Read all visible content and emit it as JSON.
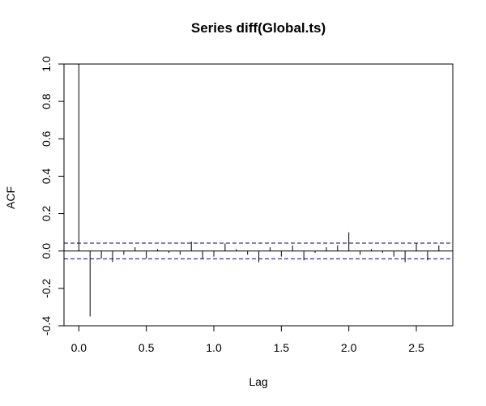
{
  "chart_data": {
    "type": "bar",
    "title": "Series  diff(Global.ts)",
    "xlabel": "Lag",
    "ylabel": "ACF",
    "xlim": [
      -0.11,
      2.77
    ],
    "ylim": [
      -0.4,
      1.0
    ],
    "x_ticks": [
      {
        "value": 0.0,
        "label": "0.0"
      },
      {
        "value": 0.5,
        "label": "0.5"
      },
      {
        "value": 1.0,
        "label": "1.0"
      },
      {
        "value": 1.5,
        "label": "1.5"
      },
      {
        "value": 2.0,
        "label": "2.0"
      },
      {
        "value": 2.5,
        "label": "2.5"
      }
    ],
    "y_ticks": [
      {
        "value": -0.4,
        "label": "-0.4"
      },
      {
        "value": -0.2,
        "label": "-0.2"
      },
      {
        "value": 0.0,
        "label": "0.0"
      },
      {
        "value": 0.2,
        "label": "0.2"
      },
      {
        "value": 0.4,
        "label": "0.4"
      },
      {
        "value": 0.6,
        "label": "0.6"
      },
      {
        "value": 0.8,
        "label": "0.8"
      },
      {
        "value": 1.0,
        "label": "1.0"
      }
    ],
    "confidence_band": [
      -0.042,
      0.042
    ],
    "x": [
      0.0,
      0.0833,
      0.1667,
      0.25,
      0.3333,
      0.4167,
      0.5,
      0.5833,
      0.6667,
      0.75,
      0.8333,
      0.9167,
      1.0,
      1.0833,
      1.1667,
      1.25,
      1.3333,
      1.4167,
      1.5,
      1.5833,
      1.6667,
      1.75,
      1.8333,
      1.9167,
      2.0,
      2.0833,
      2.1667,
      2.25,
      2.3333,
      2.4167,
      2.5,
      2.5833,
      2.6667
    ],
    "values": [
      1.0,
      -0.35,
      -0.04,
      -0.06,
      -0.02,
      0.02,
      -0.04,
      0.01,
      -0.01,
      -0.02,
      0.05,
      -0.04,
      -0.03,
      0.04,
      0.01,
      -0.02,
      -0.06,
      0.02,
      -0.03,
      0.03,
      -0.05,
      -0.01,
      0.02,
      0.03,
      0.1,
      -0.02,
      0.01,
      -0.01,
      -0.03,
      -0.06,
      0.04,
      -0.05,
      0.03
    ],
    "grid": false,
    "legend": "none",
    "colors": {
      "line": "#000000",
      "band": "#00008B"
    }
  }
}
